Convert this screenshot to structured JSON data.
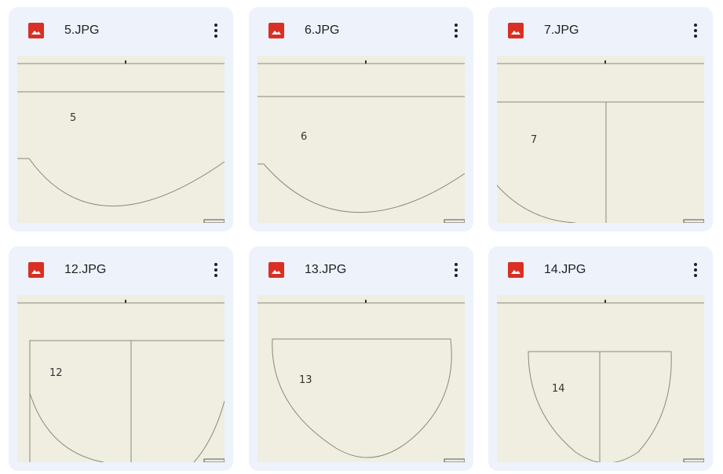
{
  "files": [
    {
      "name": "5.JPG",
      "label": "5",
      "icon": "image-icon",
      "menu_icon": "more-vert-icon"
    },
    {
      "name": "6.JPG",
      "label": "6",
      "icon": "image-icon",
      "menu_icon": "more-vert-icon"
    },
    {
      "name": "7.JPG",
      "label": "7",
      "icon": "image-icon",
      "menu_icon": "more-vert-icon"
    },
    {
      "name": "12.JPG",
      "label": "12",
      "icon": "image-icon",
      "menu_icon": "more-vert-icon"
    },
    {
      "name": "13.JPG",
      "label": "13",
      "icon": "image-icon",
      "menu_icon": "more-vert-icon"
    },
    {
      "name": "14.JPG",
      "label": "14",
      "icon": "image-icon",
      "menu_icon": "more-vert-icon"
    }
  ],
  "colors": {
    "card_bg": "#eef2fb",
    "thumb_bg": "#efeee0",
    "icon_red": "#d93025",
    "line": "#8a8a7a"
  }
}
